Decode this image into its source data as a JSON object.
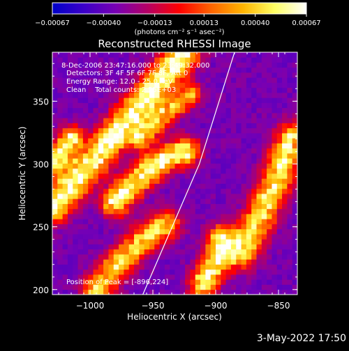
{
  "chart_data": {
    "type": "heatmap",
    "title": "Reconstructed RHESSI Image",
    "xlabel": "Heliocentric X (arcsec)",
    "ylabel": "Heliocentric Y (arcsec)",
    "xlim": [
      -1030,
      -835
    ],
    "ylim": [
      196,
      389
    ],
    "x_ticks": [
      -1000,
      -950,
      -900,
      -850
    ],
    "x_tick_labels": [
      "−1000",
      "−950",
      "−900",
      "−850"
    ],
    "y_ticks": [
      200,
      250,
      300,
      350
    ],
    "y_tick_labels": [
      "200",
      "250",
      "300",
      "350"
    ],
    "colorbar": {
      "range": [
        -0.00067,
        0.00067
      ],
      "ticks": [
        -0.00067,
        -0.0004,
        -0.00013,
        0.00013,
        0.0004,
        0.00067
      ],
      "tick_labels": [
        "−0.00067",
        "−0.00040",
        "−0.00013",
        "0.00013",
        "0.00040",
        "0.00067"
      ],
      "units": "(photons cm⁻² s⁻¹ asec⁻²)",
      "colormap": [
        "#0000c8",
        "#3c00c8",
        "#7800b4",
        "#b40064",
        "#ff0000",
        "#ff6400",
        "#ffb400",
        "#ffff64",
        "#ffffff"
      ]
    },
    "annotations": {
      "line1": "8-Dec-2006 23:47:16.000 to 23:49:32.000",
      "line2": "Detectors: 3F 4F 5F 6F 7F 8F, Att 0",
      "line3": "Energy Range: 12.0 - 25.0 keV",
      "line4": "Clean    Total counts: 2.55E+03",
      "peak": "Position of Peak = [-896,224]"
    },
    "limb_line": {
      "x": [
        -958,
        -913,
        -885
      ],
      "y": [
        196,
        300,
        389
      ]
    },
    "ridges": [
      {
        "x": [
          -1030,
          -1000,
          -970,
          -945,
          -925
        ],
        "y": [
          265,
          300,
          335,
          365,
          389
        ],
        "amp": 1.0,
        "w": 9
      },
      {
        "x": [
          -980,
          -960,
          -940,
          -925
        ],
        "y": [
          270,
          290,
          305,
          310
        ],
        "amp": 0.95,
        "w": 8
      },
      {
        "x": [
          -995,
          -980,
          -960,
          -940
        ],
        "y": [
          200,
          218,
          238,
          252
        ],
        "amp": 0.8,
        "w": 8
      },
      {
        "x": [
          -910,
          -900,
          -895
        ],
        "y": [
          205,
          222,
          240
        ],
        "amp": 0.9,
        "w": 8
      },
      {
        "x": [
          -880,
          -865,
          -850,
          -840
        ],
        "y": [
          230,
          258,
          290,
          320
        ],
        "amp": 0.85,
        "w": 9
      },
      {
        "x": [
          -1030,
          -1015
        ],
        "y": [
          300,
          320
        ],
        "amp": 0.9,
        "w": 7
      },
      {
        "x": [
          -960,
          -940,
          -920
        ],
        "y": [
          320,
          340,
          355
        ],
        "amp": 0.7,
        "w": 6
      }
    ]
  },
  "footer": {
    "date": "3-May-2022 17:50"
  }
}
